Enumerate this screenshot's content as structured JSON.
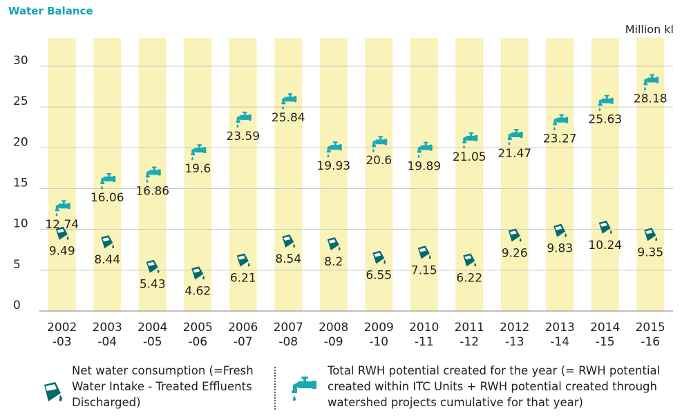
{
  "title": "Water Balance",
  "unit_label": "Million kl",
  "colors": {
    "band": "#faf3b9",
    "grid": "#c8c8c8",
    "consumption_icon": "#006b6b",
    "rwh_icon": "#19a9b3",
    "title": "#12a3b4"
  },
  "legend": {
    "consumption": {
      "text": "Net water consumption (=Fresh Water Intake - Treated Effluents Discharged)",
      "icon": "bucket-icon"
    },
    "rwh": {
      "text": "Total RWH potential created for the year (= RWH potential created within ITC Units + RWH potential created through watershed projects cumulative for that year)",
      "icon": "tap-icon"
    }
  },
  "chart_data": {
    "type": "scatter",
    "categories": [
      [
        "2002",
        "-03"
      ],
      [
        "2003",
        "-04"
      ],
      [
        "2004",
        "-05"
      ],
      [
        "2005",
        "-06"
      ],
      [
        "2006",
        "-07"
      ],
      [
        "2007",
        "-08"
      ],
      [
        "2008",
        "-09"
      ],
      [
        "2009",
        "-10"
      ],
      [
        "2010",
        "-11"
      ],
      [
        "2011",
        "-12"
      ],
      [
        "2012",
        "-13"
      ],
      [
        "2013",
        "-14"
      ],
      [
        "2014",
        "-15"
      ],
      [
        "2015",
        "-16"
      ]
    ],
    "ylim": [
      0,
      30
    ],
    "yticks": [
      0,
      5,
      10,
      15,
      20,
      25,
      30
    ],
    "grid": true,
    "series": [
      {
        "key": "rwh",
        "values": [
          12.74,
          16.06,
          16.86,
          19.6,
          23.59,
          25.84,
          19.93,
          20.6,
          19.89,
          21.05,
          21.47,
          23.27,
          25.63,
          28.18
        ]
      },
      {
        "key": "consumption",
        "values": [
          9.49,
          8.44,
          5.43,
          4.62,
          6.21,
          8.54,
          8.2,
          6.55,
          7.15,
          6.22,
          9.26,
          9.83,
          10.24,
          9.35
        ]
      }
    ]
  }
}
